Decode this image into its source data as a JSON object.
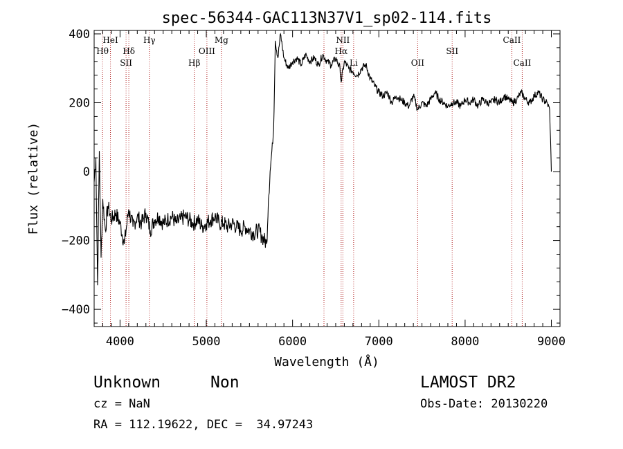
{
  "chart_data": {
    "type": "line",
    "title": "spec-56344-GAC113N37V1_sp02-114.fits",
    "xlabel": "Wavelength (Å)",
    "ylabel": "Flux (relative)",
    "xlim": [
      3700,
      9100
    ],
    "ylim": [
      -450,
      410
    ],
    "xticks": [
      4000,
      5000,
      6000,
      7000,
      8000,
      9000
    ],
    "xtick_labels": [
      "4000",
      "5000",
      "6000",
      "7000",
      "8000",
      "9000"
    ],
    "yticks": [
      -400,
      -200,
      0,
      200,
      400
    ],
    "ytick_labels": [
      "−400",
      "−200",
      "0",
      "200",
      "400"
    ],
    "grid": false,
    "legend": "none",
    "series": [
      {
        "x": [
          3700,
          3720,
          3740,
          3760,
          3780,
          3800,
          3830,
          3860,
          3900,
          3950,
          4000,
          4050,
          4100,
          4150,
          4200,
          4250,
          4300,
          4350,
          4400,
          4450,
          4500,
          4550,
          4600,
          4650,
          4700,
          4750,
          4800,
          4850,
          4900,
          4950,
          5000,
          5050,
          5100,
          5150,
          5200,
          5250,
          5300,
          5350,
          5400,
          5450,
          5500,
          5550,
          5600,
          5650,
          5700,
          5720,
          5740,
          5760,
          5780,
          5800,
          5830,
          5860,
          5900,
          5950,
          6000,
          6050,
          6100,
          6150,
          6200,
          6250,
          6300,
          6350,
          6400,
          6450,
          6500,
          6550,
          6563,
          6600,
          6650,
          6700,
          6750,
          6800,
          6850,
          6900,
          6950,
          7000,
          7050,
          7100,
          7150,
          7200,
          7250,
          7300,
          7350,
          7400,
          7450,
          7500,
          7550,
          7600,
          7650,
          7700,
          7750,
          7800,
          7850,
          7900,
          7950,
          8000,
          8050,
          8100,
          8150,
          8200,
          8250,
          8300,
          8350,
          8400,
          8450,
          8500,
          8550,
          8600,
          8650,
          8700,
          8750,
          8800,
          8850,
          8900,
          8950,
          8980,
          9000
        ],
        "y": [
          -30,
          40,
          -330,
          60,
          -250,
          -80,
          -170,
          -100,
          -140,
          -120,
          -150,
          -210,
          -110,
          -160,
          -130,
          -150,
          -120,
          -170,
          -140,
          -130,
          -150,
          -140,
          -130,
          -150,
          -140,
          -130,
          -140,
          -150,
          -140,
          -160,
          -150,
          -140,
          -130,
          -150,
          -150,
          -160,
          -150,
          -160,
          -170,
          -160,
          -170,
          -180,
          -170,
          -190,
          -210,
          -80,
          0,
          60,
          120,
          380,
          330,
          400,
          330,
          300,
          320,
          330,
          310,
          340,
          320,
          330,
          310,
          340,
          320,
          310,
          330,
          300,
          260,
          320,
          300,
          290,
          280,
          300,
          310,
          270,
          250,
          230,
          220,
          230,
          200,
          220,
          210,
          200,
          190,
          220,
          180,
          200,
          190,
          210,
          230,
          210,
          200,
          190,
          200,
          200,
          190,
          210,
          200,
          210,
          190,
          210,
          200,
          200,
          210,
          200,
          220,
          210,
          200,
          210,
          230,
          210,
          200,
          220,
          230,
          210,
          200,
          180,
          0
        ]
      }
    ],
    "lines": [
      {
        "label": "Hθ",
        "x": 3797,
        "row": 2
      },
      {
        "label": "HeI",
        "x": 3889,
        "row": 1
      },
      {
        "label": "SII",
        "x": 4070,
        "row": 3
      },
      {
        "label": "Hδ",
        "x": 4102,
        "row": 2
      },
      {
        "label": "Hγ",
        "x": 4340,
        "row": 1
      },
      {
        "label": "Hβ",
        "x": 4861,
        "row": 3
      },
      {
        "label": "OIII",
        "x": 5007,
        "row": 2
      },
      {
        "label": "Mg",
        "x": 5175,
        "row": 1
      },
      {
        "label": "",
        "x": 6364,
        "row": 0
      },
      {
        "label": "NII",
        "x": 6583,
        "row": 1
      },
      {
        "label": "Hα",
        "x": 6563,
        "row": 2
      },
      {
        "label": "Li",
        "x": 6708,
        "row": 3
      },
      {
        "label": "OII",
        "x": 7450,
        "row": 3
      },
      {
        "label": "SII",
        "x": 7850,
        "row": 2
      },
      {
        "label": "CaII",
        "x": 8542,
        "row": 1
      },
      {
        "label": "CaII",
        "x": 8662,
        "row": 3
      }
    ]
  },
  "info": {
    "class_label": "Unknown",
    "subclass_label": "Non",
    "survey": "LAMOST DR2",
    "cz": "cz = NaN",
    "obs_date": "Obs-Date: 20130220",
    "coords": "RA = 112.19622, DEC =  34.97243"
  }
}
